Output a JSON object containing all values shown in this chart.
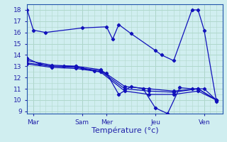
{
  "title": "",
  "xlabel": "Température (°c)",
  "background_color": "#d0eef0",
  "grid_color": "#b0d8cc",
  "line_color": "#1111bb",
  "xlim": [
    0,
    32
  ],
  "ylim": [
    8.8,
    18.5
  ],
  "yticks": [
    9,
    10,
    11,
    12,
    13,
    14,
    15,
    16,
    17,
    18
  ],
  "x_tick_positions": [
    1,
    9,
    13,
    21,
    29
  ],
  "x_tick_labels": [
    "Mar",
    "Sam",
    "Mer",
    "Jeu",
    "Ven"
  ],
  "lines": [
    {
      "x": [
        0,
        1,
        3,
        9,
        13,
        14,
        15,
        17,
        21,
        22,
        24,
        27,
        28,
        29,
        31
      ],
      "y": [
        18,
        16.2,
        16.0,
        16.4,
        16.5,
        15.4,
        16.7,
        15.9,
        14.4,
        14.0,
        13.5,
        18.0,
        18.0,
        16.2,
        9.9
      ]
    },
    {
      "x": [
        0,
        2,
        4,
        6,
        8,
        9,
        11,
        13,
        15,
        17,
        19,
        21,
        23,
        25,
        27,
        29,
        31
      ],
      "y": [
        13.7,
        13.2,
        13.0,
        13.0,
        13.0,
        12.8,
        12.6,
        12.4,
        10.5,
        11.2,
        11.0,
        9.3,
        8.8,
        11.1,
        11.0,
        11.0,
        10.0
      ]
    },
    {
      "x": [
        0,
        4,
        8,
        12,
        16,
        20,
        24,
        28,
        31
      ],
      "y": [
        13.5,
        13.1,
        13.0,
        12.7,
        11.2,
        11.0,
        10.8,
        11.0,
        10.0
      ]
    },
    {
      "x": [
        0,
        4,
        8,
        12,
        16,
        20,
        24,
        28,
        31
      ],
      "y": [
        13.3,
        13.0,
        12.9,
        12.6,
        11.0,
        10.8,
        10.7,
        11.0,
        10.0
      ]
    },
    {
      "x": [
        0,
        4,
        8,
        12,
        16,
        20,
        24,
        28,
        31
      ],
      "y": [
        13.2,
        12.9,
        12.8,
        12.5,
        10.8,
        10.5,
        10.5,
        10.8,
        10.0
      ]
    }
  ],
  "vline_positions": [
    1,
    9,
    13,
    21,
    29
  ],
  "tick_label_fontsize": 6.5,
  "xlabel_fontsize": 8,
  "ytick_fontsize": 6.5
}
